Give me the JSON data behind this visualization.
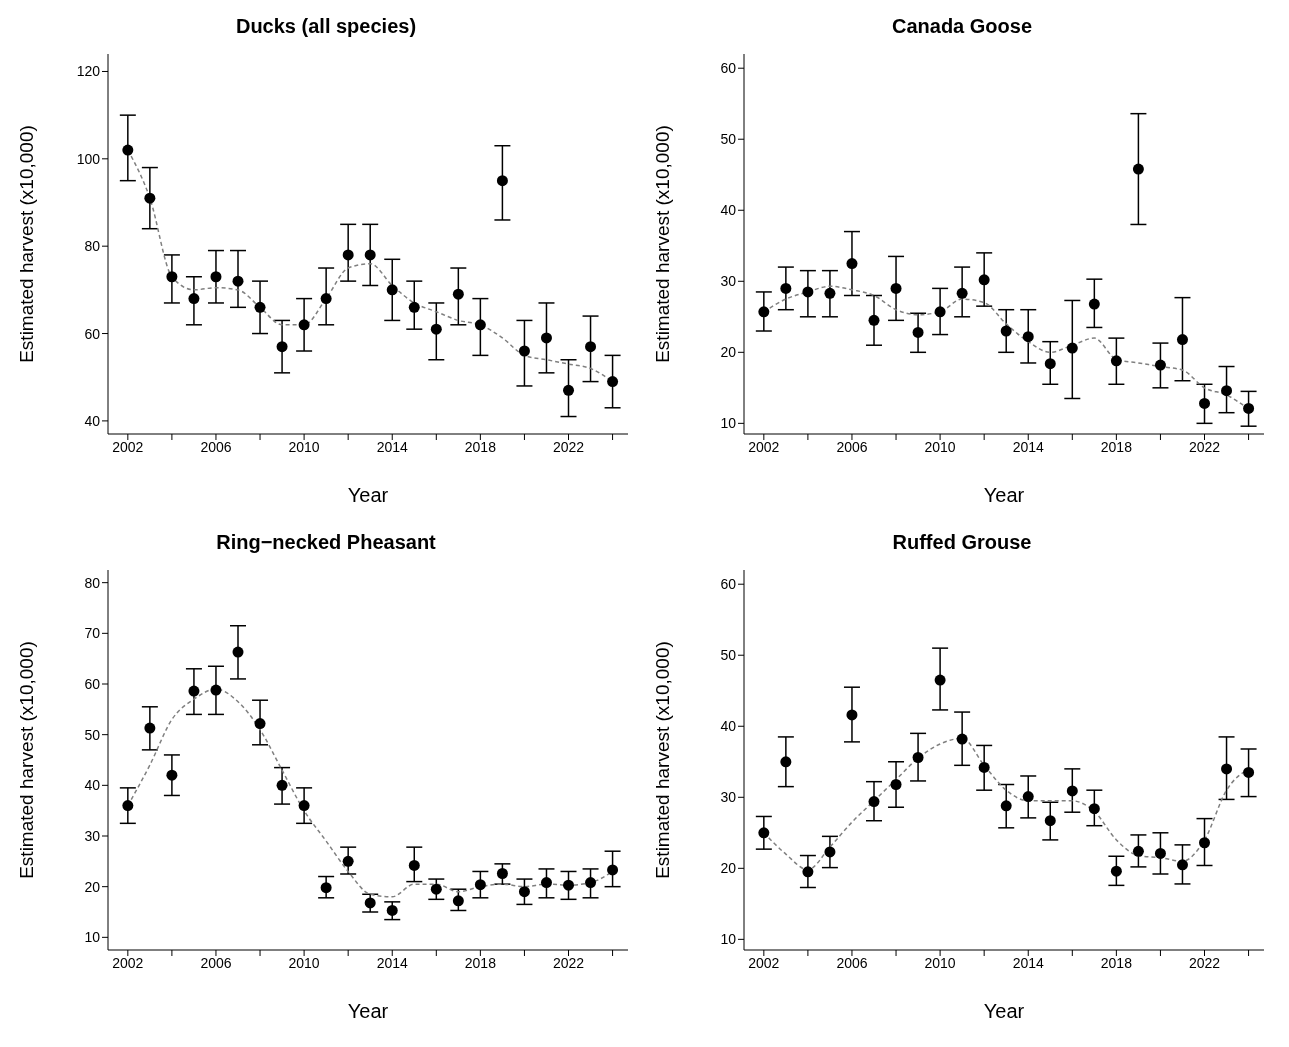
{
  "chart_data": [
    {
      "type": "scatter",
      "title": "Ducks (all species)",
      "xlabel": "Year",
      "ylabel": "Estimated harvest (x10,000)",
      "marker": "circle",
      "grid": false,
      "legend": false,
      "x": [
        2002,
        2003,
        2004,
        2005,
        2006,
        2007,
        2008,
        2009,
        2010,
        2011,
        2012,
        2013,
        2014,
        2015,
        2016,
        2017,
        2018,
        2019,
        2020,
        2021,
        2022,
        2023,
        2024
      ],
      "xlim": [
        2001.1,
        2024.7
      ],
      "xticks": [
        2002,
        {
          "value": 2004,
          "label": null
        },
        2006,
        {
          "value": 2008,
          "label": null
        },
        2010,
        {
          "value": 2012,
          "label": null
        },
        2014,
        {
          "value": 2016,
          "label": null
        },
        2018,
        {
          "value": 2020,
          "label": null
        },
        2022,
        {
          "value": 2024,
          "label": null
        }
      ],
      "ylim": [
        37,
        124
      ],
      "yticks": [
        40,
        60,
        80,
        100,
        120
      ],
      "series": [
        {
          "color": "#000000",
          "values": [
            102,
            91,
            73,
            68,
            73,
            72,
            66,
            57,
            62,
            68,
            78,
            78,
            70,
            66,
            61,
            69,
            62,
            95,
            56,
            59,
            47,
            57,
            49
          ],
          "errors": [
            [
              95,
              110
            ],
            [
              84,
              98
            ],
            [
              67,
              78
            ],
            [
              62,
              73
            ],
            [
              67,
              79
            ],
            [
              66,
              79
            ],
            [
              60,
              72
            ],
            [
              51,
              63
            ],
            [
              56,
              68
            ],
            [
              62,
              75
            ],
            [
              72,
              85
            ],
            [
              71,
              85
            ],
            [
              63,
              77
            ],
            [
              61,
              72
            ],
            [
              54,
              67
            ],
            [
              62,
              75
            ],
            [
              55,
              68
            ],
            [
              86,
              103
            ],
            [
              48,
              63
            ],
            [
              51,
              67
            ],
            [
              41,
              54
            ],
            [
              49,
              64
            ],
            [
              43,
              55
            ]
          ]
        },
        {
          "type": "line",
          "color": "#808080",
          "line_style": "dashed",
          "marker": "none",
          "values": [
            102,
            91,
            73,
            70,
            70.5,
            70,
            66,
            62,
            62,
            68,
            75,
            76,
            71,
            67,
            65,
            63,
            62,
            59,
            55,
            54,
            53,
            52,
            49
          ]
        }
      ]
    },
    {
      "type": "scatter",
      "title": "Canada Goose",
      "xlabel": "Year",
      "ylabel": "Estimated harvest (x10,000)",
      "marker": "circle",
      "grid": false,
      "legend": false,
      "x": [
        2002,
        2003,
        2004,
        2005,
        2006,
        2007,
        2008,
        2009,
        2010,
        2011,
        2012,
        2013,
        2014,
        2015,
        2016,
        2017,
        2018,
        2019,
        2020,
        2021,
        2022,
        2023,
        2024
      ],
      "xlim": [
        2001.1,
        2024.7
      ],
      "xticks": [
        2002,
        {
          "value": 2004,
          "label": null
        },
        2006,
        {
          "value": 2008,
          "label": null
        },
        2010,
        {
          "value": 2012,
          "label": null
        },
        2014,
        {
          "value": 2016,
          "label": null
        },
        2018,
        {
          "value": 2020,
          "label": null
        },
        2022,
        {
          "value": 2024,
          "label": null
        }
      ],
      "ylim": [
        8.5,
        62
      ],
      "yticks": [
        10,
        20,
        30,
        40,
        50,
        60
      ],
      "series": [
        {
          "color": "#000000",
          "values": [
            25.7,
            29,
            28.5,
            28.3,
            32.5,
            24.5,
            29,
            22.8,
            25.7,
            28.3,
            30.2,
            23,
            22.2,
            18.4,
            20.6,
            26.8,
            18.8,
            45.8,
            18.2,
            21.8,
            12.8,
            14.6,
            12.1
          ],
          "errors": [
            [
              23,
              28.5
            ],
            [
              26,
              32
            ],
            [
              25,
              31.5
            ],
            [
              25,
              31.5
            ],
            [
              28,
              37
            ],
            [
              21,
              28
            ],
            [
              24.5,
              33.5
            ],
            [
              20,
              25.5
            ],
            [
              22.5,
              29
            ],
            [
              25,
              32
            ],
            [
              26.5,
              34
            ],
            [
              20,
              26
            ],
            [
              18.5,
              26
            ],
            [
              15.5,
              21.5
            ],
            [
              13.5,
              27.3
            ],
            [
              23.5,
              30.3
            ],
            [
              15.5,
              22
            ],
            [
              38,
              53.6
            ],
            [
              15,
              21.3
            ],
            [
              16,
              27.7
            ],
            [
              10,
              15.5
            ],
            [
              11.5,
              18
            ],
            [
              9.6,
              14.5
            ]
          ]
        },
        {
          "type": "line",
          "color": "#808080",
          "line_style": "dashed",
          "marker": "none",
          "values": [
            25.7,
            27.5,
            28.5,
            29.3,
            28.8,
            28,
            26,
            25.3,
            25.7,
            27.5,
            27,
            24,
            21.5,
            20,
            21,
            22,
            19,
            18.5,
            18,
            17.5,
            15,
            14,
            12
          ]
        }
      ]
    },
    {
      "type": "scatter",
      "title": "Ring−necked Pheasant",
      "xlabel": "Year",
      "ylabel": "Estimated harvest (x10,000)",
      "marker": "circle",
      "grid": false,
      "legend": false,
      "x": [
        2002,
        2003,
        2004,
        2005,
        2006,
        2007,
        2008,
        2009,
        2010,
        2011,
        2012,
        2013,
        2014,
        2015,
        2016,
        2017,
        2018,
        2019,
        2020,
        2021,
        2022,
        2023,
        2024
      ],
      "xlim": [
        2001.1,
        2024.7
      ],
      "xticks": [
        2002,
        {
          "value": 2004,
          "label": null
        },
        2006,
        {
          "value": 2008,
          "label": null
        },
        2010,
        {
          "value": 2012,
          "label": null
        },
        2014,
        {
          "value": 2016,
          "label": null
        },
        2018,
        {
          "value": 2020,
          "label": null
        },
        2022,
        {
          "value": 2024,
          "label": null
        }
      ],
      "ylim": [
        7.5,
        82.5
      ],
      "yticks": [
        10,
        20,
        30,
        40,
        50,
        60,
        70,
        80
      ],
      "series": [
        {
          "color": "#000000",
          "values": [
            36,
            51.3,
            42,
            58.6,
            58.8,
            66.3,
            52.2,
            40,
            36,
            19.8,
            25,
            16.8,
            15.3,
            24.2,
            19.5,
            17.2,
            20.4,
            22.6,
            19,
            20.8,
            20.3,
            20.8,
            23.3
          ],
          "errors": [
            [
              32.5,
              39.5
            ],
            [
              47,
              55.5
            ],
            [
              38,
              46
            ],
            [
              54,
              63
            ],
            [
              54,
              63.5
            ],
            [
              61,
              71.5
            ],
            [
              48,
              56.8
            ],
            [
              36.3,
              43.5
            ],
            [
              32.5,
              39.5
            ],
            [
              17.8,
              22
            ],
            [
              22.5,
              27.8
            ],
            [
              15,
              18.5
            ],
            [
              13.5,
              17
            ],
            [
              21,
              27.8
            ],
            [
              17.5,
              21.5
            ],
            [
              15.3,
              19.5
            ],
            [
              17.8,
              23
            ],
            [
              20.5,
              24.5
            ],
            [
              16.5,
              21.5
            ],
            [
              17.8,
              23.5
            ],
            [
              17.5,
              23
            ],
            [
              17.8,
              23.5
            ],
            [
              20,
              27
            ]
          ]
        },
        {
          "type": "line",
          "color": "#808080",
          "line_style": "dashed",
          "marker": "none",
          "values": [
            36,
            44,
            53,
            57,
            59,
            56.5,
            51,
            43,
            35,
            29,
            23,
            18.5,
            18,
            20.5,
            20.5,
            19,
            20,
            20.5,
            20,
            20.5,
            20.3,
            20.8,
            23
          ]
        }
      ]
    },
    {
      "type": "scatter",
      "title": "Ruffed Grouse",
      "xlabel": "Year",
      "ylabel": "Estimated harvest (x10,000)",
      "marker": "circle",
      "grid": false,
      "legend": false,
      "x": [
        2002,
        2003,
        2004,
        2005,
        2006,
        2007,
        2008,
        2009,
        2010,
        2011,
        2012,
        2013,
        2014,
        2015,
        2016,
        2017,
        2018,
        2019,
        2020,
        2021,
        2022,
        2023,
        2024
      ],
      "xlim": [
        2001.1,
        2024.7
      ],
      "xticks": [
        2002,
        {
          "value": 2004,
          "label": null
        },
        2006,
        {
          "value": 2008,
          "label": null
        },
        2010,
        {
          "value": 2012,
          "label": null
        },
        2014,
        {
          "value": 2016,
          "label": null
        },
        2018,
        {
          "value": 2020,
          "label": null
        },
        2022,
        {
          "value": 2024,
          "label": null
        }
      ],
      "ylim": [
        8.5,
        62
      ],
      "yticks": [
        10,
        20,
        30,
        40,
        50,
        60
      ],
      "series": [
        {
          "color": "#000000",
          "values": [
            25,
            35,
            19.5,
            22.3,
            41.6,
            29.4,
            31.8,
            35.6,
            46.5,
            38.2,
            34.2,
            28.8,
            30.1,
            26.7,
            30.9,
            28.4,
            19.6,
            22.4,
            22.1,
            20.5,
            23.6,
            34,
            33.5
          ],
          "errors": [
            [
              22.7,
              27.3
            ],
            [
              31.5,
              38.5
            ],
            [
              17.3,
              21.8
            ],
            [
              20.1,
              24.5
            ],
            [
              37.8,
              45.5
            ],
            [
              26.7,
              32.2
            ],
            [
              28.6,
              35
            ],
            [
              32.3,
              39
            ],
            [
              42.3,
              51
            ],
            [
              34.5,
              42
            ],
            [
              31,
              37.3
            ],
            [
              25.7,
              31.8
            ],
            [
              27.1,
              33
            ],
            [
              24,
              29.3
            ],
            [
              27.9,
              34
            ],
            [
              26,
              31
            ],
            [
              17.6,
              21.7
            ],
            [
              20.2,
              24.7
            ],
            [
              19.2,
              25
            ],
            [
              17.8,
              23.3
            ],
            [
              20.4,
              27
            ],
            [
              29.7,
              38.5
            ],
            [
              30.1,
              36.8
            ]
          ]
        },
        {
          "type": "line",
          "color": "#808080",
          "line_style": "dashed",
          "marker": "none",
          "values": [
            25,
            22,
            19.8,
            23,
            26.5,
            29.5,
            32.5,
            35.5,
            37.5,
            38.3,
            34.5,
            31,
            29.5,
            29.5,
            29.5,
            28,
            24,
            21.8,
            21.5,
            21,
            24,
            31,
            34
          ]
        }
      ]
    }
  ]
}
